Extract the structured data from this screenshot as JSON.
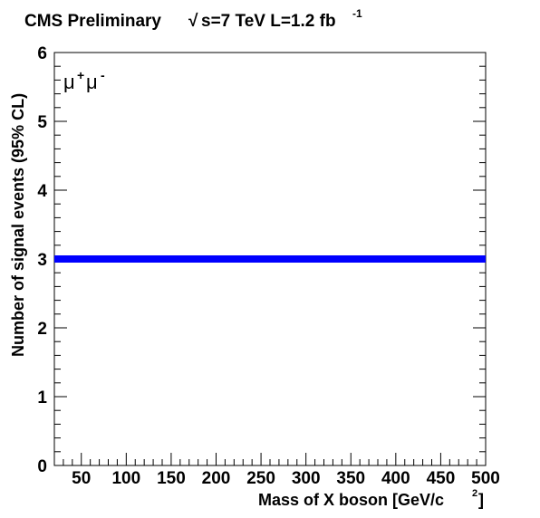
{
  "chart_data": {
    "type": "line",
    "title": {
      "experiment": "CMS Preliminary",
      "sqrt_symbol": "√",
      "energy_text": "s=7 TeV L=1.2 fb",
      "lumi_exponent": "-1"
    },
    "annotation": {
      "base": "μ",
      "sup1": "+",
      "base2": "μ",
      "sup2": "-"
    },
    "xlabel": {
      "main": "Mass of X boson [GeV/c",
      "sup": "2",
      "close": "]"
    },
    "ylabel": "Number of signal events (95% CL)",
    "xlim": [
      20,
      500
    ],
    "ylim": [
      0,
      6
    ],
    "x_ticks": [
      50,
      100,
      150,
      200,
      250,
      300,
      350,
      400,
      450,
      500
    ],
    "y_ticks": [
      0,
      1,
      2,
      3,
      4,
      5,
      6
    ],
    "grid": false,
    "series": [
      {
        "x": [
          20,
          500
        ],
        "y": [
          3.0,
          3.0
        ],
        "color": "#0000ff"
      }
    ]
  }
}
